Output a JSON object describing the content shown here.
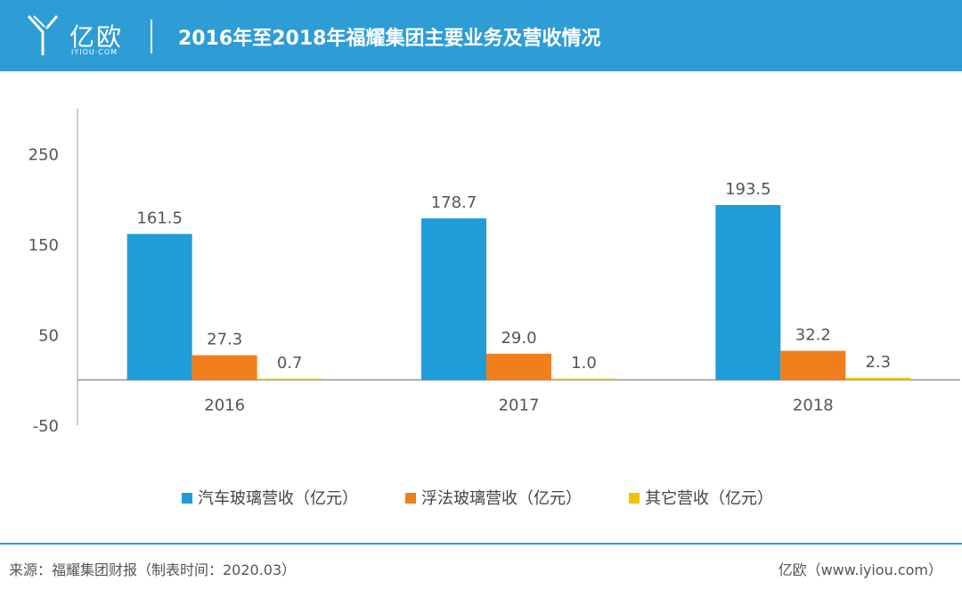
{
  "header": {
    "logo_text": "亿欧",
    "logo_sub": "IYIOU·COM",
    "title": "2016年至2018年福耀集团主要业务及营收情况"
  },
  "chart_data": {
    "type": "bar",
    "categories": [
      "2016",
      "2017",
      "2018"
    ],
    "series": [
      {
        "name": "汽车玻璃营收（亿元）",
        "values": [
          161.5,
          178.7,
          193.5
        ],
        "labels": [
          "161.5",
          "178.7",
          "193.5"
        ],
        "color": "#1f9dd8"
      },
      {
        "name": "浮法玻璃营收（亿元）",
        "values": [
          27.3,
          29.0,
          32.2
        ],
        "labels": [
          "27.3",
          "29.0",
          "32.2"
        ],
        "color": "#f07f1c"
      },
      {
        "name": "其它营收（亿元）",
        "values": [
          0.7,
          1.0,
          2.3
        ],
        "labels": [
          "0.7",
          "1.0",
          "2.3"
        ],
        "color": "#f2c200"
      }
    ],
    "yticks": [
      250,
      150,
      50,
      -50
    ],
    "ylim": [
      -50,
      300
    ],
    "title": "2016年至2018年福耀集团主要业务及营收情况",
    "xlabel": "",
    "ylabel": ""
  },
  "footer": {
    "source": "来源：福耀集团财报（制表时间：2020.03）",
    "brand": "亿欧（www.iyiou.com）"
  }
}
